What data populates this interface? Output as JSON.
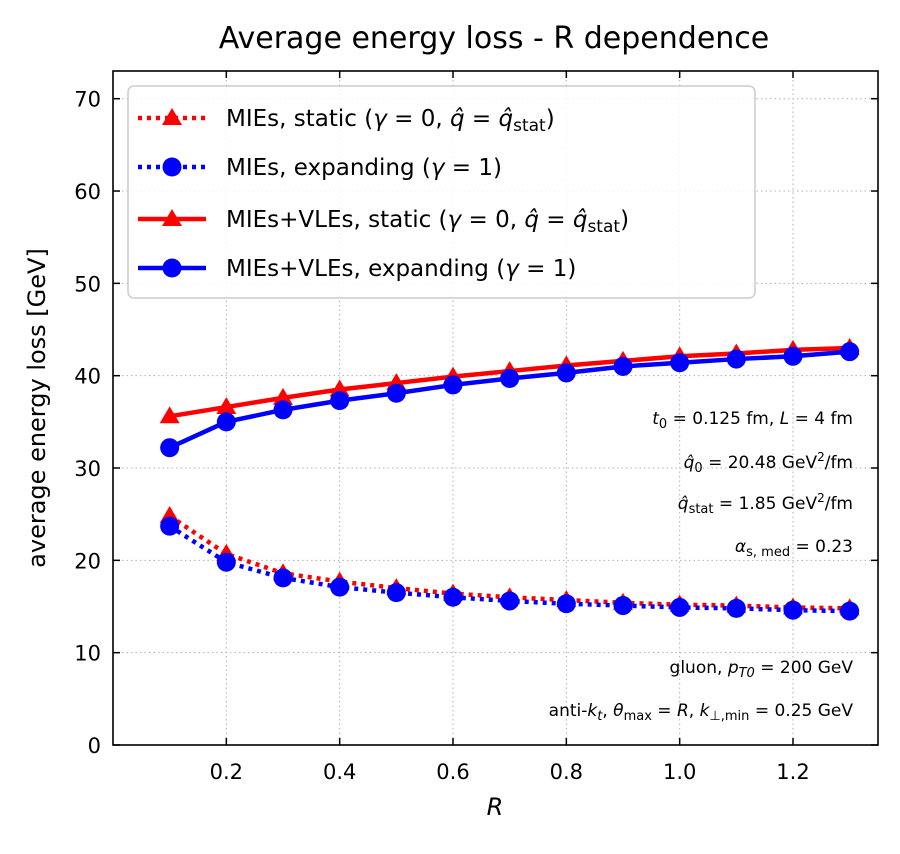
{
  "chart_data": {
    "type": "line",
    "title": "Average energy loss - R dependence",
    "xlabel": "R",
    "ylabel": "average energy loss [GeV]",
    "xlim": [
      0.0,
      1.35
    ],
    "ylim": [
      0,
      73
    ],
    "xticks": [
      "0.2",
      "0.4",
      "0.6",
      "0.8",
      "1.0",
      "1.2"
    ],
    "xtick_values": [
      0.2,
      0.4,
      0.6,
      0.8,
      1.0,
      1.2
    ],
    "yticks": [
      "0",
      "10",
      "20",
      "30",
      "40",
      "50",
      "60",
      "70"
    ],
    "ytick_values": [
      0,
      10,
      20,
      30,
      40,
      50,
      60,
      70
    ],
    "grid": true,
    "legend_position": "top-left",
    "x": [
      0.1,
      0.2,
      0.3,
      0.4,
      0.5,
      0.6,
      0.7,
      0.8,
      0.9,
      1.0,
      1.1,
      1.2,
      1.3
    ],
    "series": [
      {
        "name": "MIEs, static (γ = 0, q̂ = q̂stat)",
        "color": "#ff0000",
        "marker": "triangle",
        "linestyle": "dotted",
        "values": [
          24.8,
          20.7,
          18.6,
          17.7,
          17.0,
          16.4,
          16.0,
          15.7,
          15.4,
          15.2,
          15.1,
          14.9,
          14.8
        ]
      },
      {
        "name": "MIEs, expanding (γ = 1)",
        "color": "#0000ff",
        "marker": "circle",
        "linestyle": "dotted",
        "values": [
          23.7,
          19.8,
          18.1,
          17.1,
          16.5,
          16.0,
          15.6,
          15.3,
          15.1,
          14.9,
          14.8,
          14.6,
          14.5
        ]
      },
      {
        "name": "MIEs+VLEs, static (γ = 0, q̂ = q̂stat)",
        "color": "#ff0000",
        "marker": "triangle",
        "linestyle": "solid",
        "values": [
          35.6,
          36.6,
          37.6,
          38.5,
          39.2,
          39.9,
          40.5,
          41.1,
          41.6,
          42.1,
          42.4,
          42.8,
          43.0
        ]
      },
      {
        "name": "MIEs+VLEs, expanding (γ = 1)",
        "color": "#0000ff",
        "marker": "circle",
        "linestyle": "solid",
        "values": [
          32.2,
          35.0,
          36.3,
          37.3,
          38.1,
          39.0,
          39.7,
          40.3,
          41.0,
          41.4,
          41.8,
          42.1,
          42.6
        ]
      }
    ],
    "legend": [
      {
        "prefix": "MIEs, static (",
        "gamma": "γ",
        "eq": " = 0, ",
        "q": "q̂",
        "eq2": " = ",
        "qs": "q̂",
        "sub": "stat",
        "suffix": ")"
      },
      {
        "prefix": "MIEs, expanding (",
        "gamma": "γ",
        "eq": " = 1)"
      },
      {
        "prefix": "MIEs+VLEs, static (",
        "gamma": "γ",
        "eq": " = 0, ",
        "q": "q̂",
        "eq2": " = ",
        "qs": "q̂",
        "sub": "stat",
        "suffix": ")"
      },
      {
        "prefix": "MIEs+VLEs, expanding (",
        "gamma": "γ",
        "eq": " = 1)"
      }
    ],
    "annotations": {
      "t0": {
        "sym": "t",
        "sub": "0",
        "rest": " = 0.125 fm, ",
        "L": "L",
        "rest2": " = 4 fm"
      },
      "q0": {
        "sym": "q̂",
        "sub": "0",
        "rest": " = 20.48 GeV",
        "sup": "2",
        "rest2": "/fm"
      },
      "qstat": {
        "sym": "q̂",
        "sub": "stat",
        "rest": " = 1.85 GeV",
        "sup": "2",
        "rest2": "/fm"
      },
      "alpha": {
        "sym": "α",
        "sub": "s, med",
        "rest": " = 0.23"
      },
      "gluon": {
        "pre": "gluon, ",
        "sym": "p",
        "sub": "T0",
        "rest": " = 200 GeV"
      },
      "antikt": {
        "pre": "anti-",
        "k": "k",
        "ksub": "t",
        "mid": ", ",
        "theta": "θ",
        "thsub": "max",
        "eq": " = ",
        "R": "R",
        "mid2": ", ",
        "kp": "k",
        "kpsub": "⊥,min",
        "rest": " = 0.25 GeV"
      }
    }
  }
}
